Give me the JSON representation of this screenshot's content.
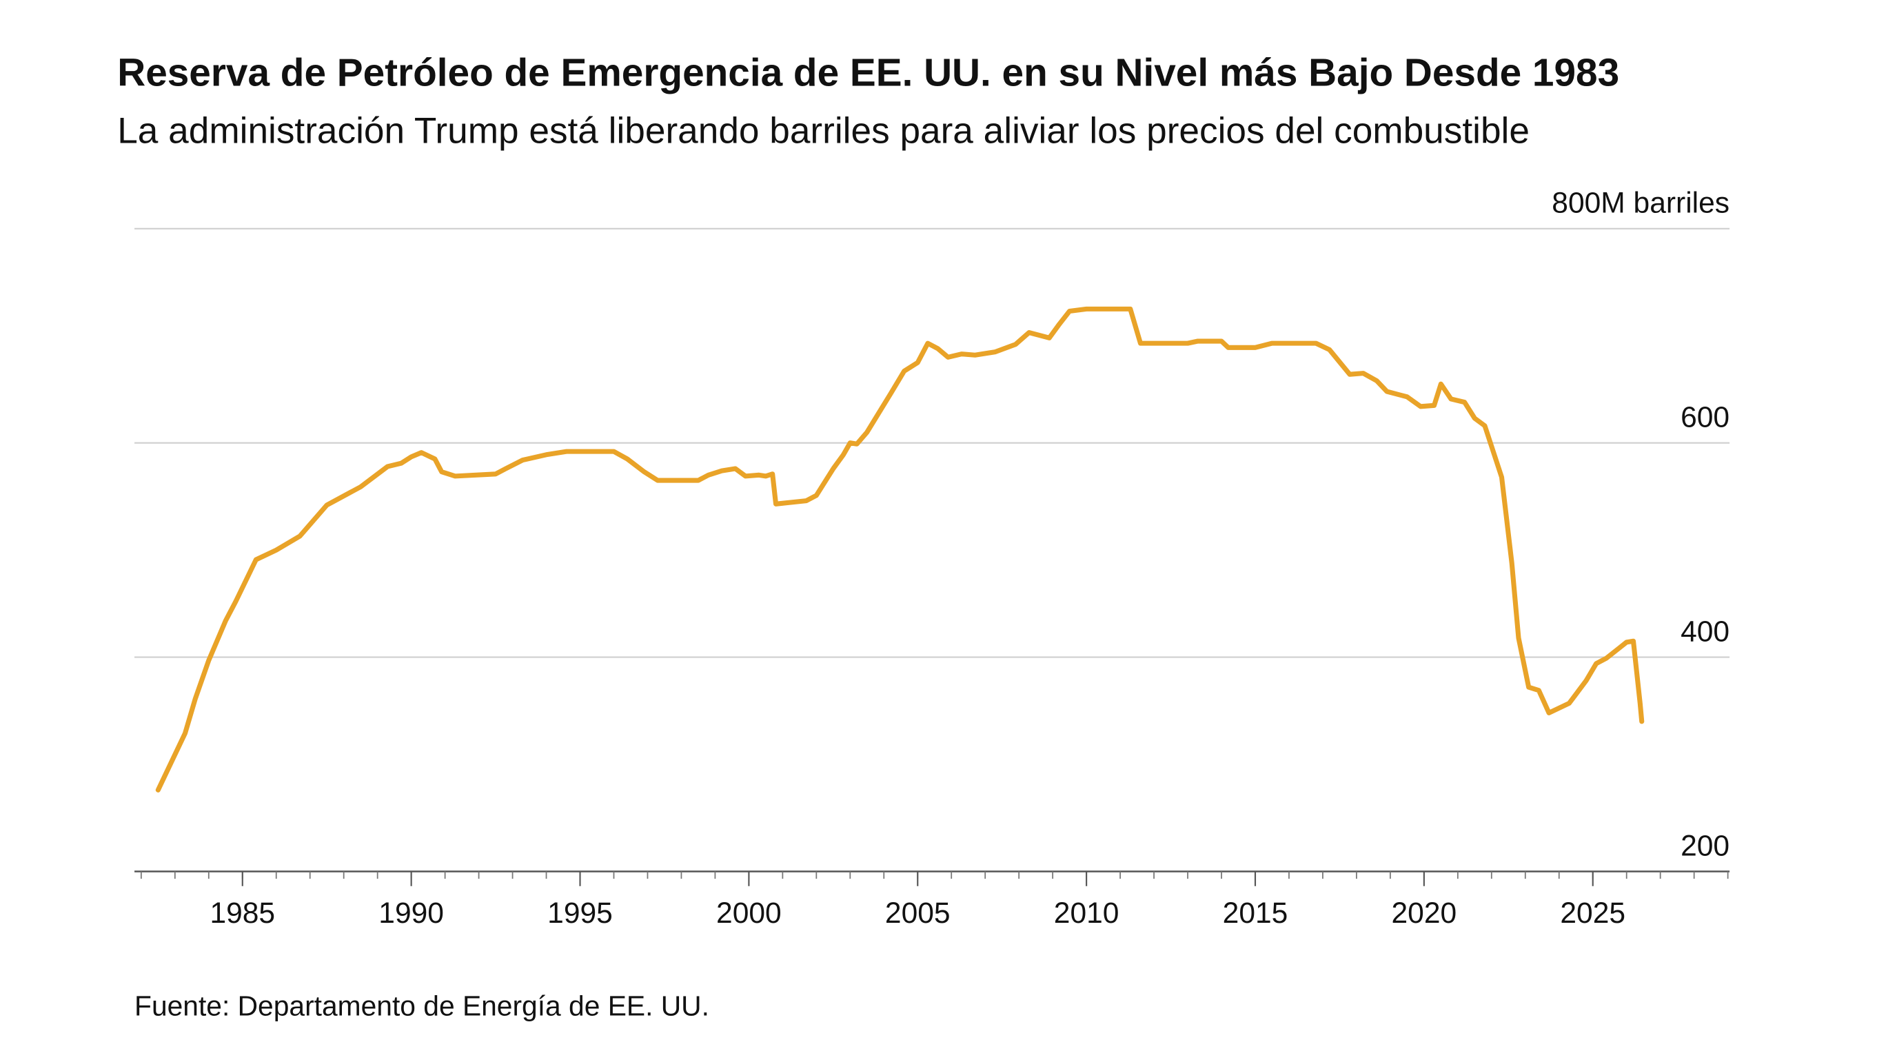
{
  "chart_data": {
    "type": "line",
    "title": "Reserva de Petróleo de Emergencia de EE. UU. en su Nivel más Bajo Desde 1983",
    "subtitle": "La administración Trump está liberando barriles para aliviar los precios del combustible",
    "source": "Fuente: Departamento de Energía de EE. UU.",
    "color": "#e9a328",
    "x": [
      1982.5,
      1983.3,
      1983.6,
      1984,
      1984.5,
      1984.8,
      1985.4,
      1986,
      1986.7,
      1987.5,
      1988.5,
      1989.3,
      1989.7,
      1990,
      1990.3,
      1990.7,
      1990.9,
      1991.3,
      1992.5,
      1992.8,
      1993.3,
      1994,
      1994.6,
      1996,
      1996.4,
      1996.9,
      1997.3,
      1998.5,
      1998.8,
      1999.2,
      1999.6,
      1999.9,
      2000.3,
      2000.5,
      2000.7,
      2000.8,
      2001.7,
      2002,
      2002.5,
      2002.8,
      2003,
      2003.2,
      2003.5,
      2004.2,
      2004.6,
      2005,
      2005.3,
      2005.6,
      2005.9,
      2006.3,
      2006.7,
      2007.3,
      2007.9,
      2008.3,
      2008.9,
      2009.2,
      2009.5,
      2010,
      2011.3,
      2011.6,
      2012.5,
      2013,
      2013.3,
      2014,
      2014.2,
      2015,
      2015.5,
      2016.8,
      2017.2,
      2017.8,
      2018.2,
      2018.6,
      2018.9,
      2019.5,
      2019.9,
      2020.3,
      2020.5,
      2020.8,
      2021.2,
      2021.5,
      2021.8,
      2022.3,
      2022.6,
      2022.8,
      2023.1,
      2023.4,
      2023.7,
      2024.3,
      2024.8,
      2025.1,
      2025.4,
      2025.8,
      2026,
      2026.2,
      2026.4,
      2026.45
    ],
    "values": [
      276,
      329,
      361,
      397,
      434,
      452,
      491,
      500,
      513,
      542,
      559,
      578,
      581,
      587,
      591,
      585,
      573,
      569,
      571,
      576,
      584,
      589,
      592,
      592,
      585,
      573,
      565,
      565,
      570,
      574,
      576,
      569,
      570,
      569,
      571,
      543,
      546,
      551,
      576,
      589,
      600,
      599,
      610,
      646,
      667,
      675,
      693,
      688,
      680,
      683,
      682,
      685,
      692,
      703,
      698,
      711,
      723,
      725,
      725,
      693,
      693,
      693,
      695,
      695,
      689,
      689,
      693,
      693,
      687,
      664,
      665,
      658,
      648,
      643,
      634,
      635,
      655,
      641,
      638,
      623,
      616,
      568,
      488,
      418,
      372,
      369,
      348,
      357,
      378,
      394,
      399,
      409,
      414,
      415,
      357,
      340
    ],
    "xlim": [
      1981.8,
      2029.05
    ],
    "xticks": [
      1985,
      1990,
      1995,
      2000,
      2005,
      2010,
      2015,
      2020,
      2025
    ],
    "ylim": [
      200,
      800
    ],
    "yticks": [
      200,
      400,
      600,
      {
        "value": 800,
        "label": "800M barriles"
      }
    ],
    "grid": true
  }
}
